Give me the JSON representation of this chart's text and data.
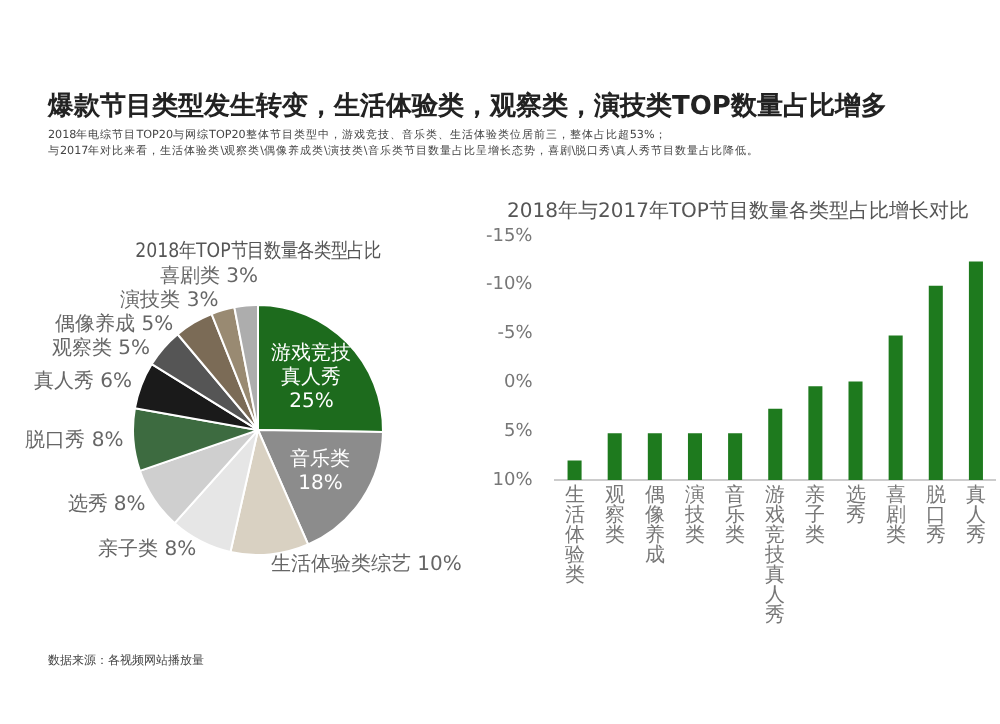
{
  "chart_data": [
    {
      "type": "other",
      "title": "爆款节目类型发生转变，生活体验类，观察类，演技类TOP数量占比增多",
      "subtitle": "2018年电综节目TOP20与网综TOP20整体节目类型中，游戏竞技、音乐类、生活体验类位居前三，整体占比超53%；",
      "annotations": [
        "与2017年对比来看，生活体验类\\观察类\\偶像养成类\\演技类\\音乐类节目数量占比呈增长态势，喜剧\\脱口秀\\真人秀节目数量占比降低。",
        "数据来源：各视频网站播放量"
      ]
    },
    {
      "type": "pie",
      "title": "2018年TOP节目数量各类型占比",
      "categories": [
        "游戏竞技真人秀",
        "音乐类",
        "生活体验类综艺",
        "亲子类",
        "选秀",
        "脱口秀",
        "真人秀",
        "观察类",
        "偶像养成",
        "演技类",
        "喜剧类"
      ],
      "values": [
        25,
        18,
        10,
        8,
        8,
        8,
        6,
        5,
        5,
        3,
        3
      ],
      "value_labels": [
        "25%",
        "18%",
        "10%",
        "8%",
        "8%",
        "8%",
        "6%",
        "5%",
        "5%",
        "3%",
        "3%"
      ],
      "colors": [
        "#1d6b1d",
        "#8c8c8c",
        "#d9d1c2",
        "#e6e6e6",
        "#cfcfcf",
        "#3d6b40",
        "#1a1a1a",
        "#555555",
        "#7b6b56",
        "#998a72",
        "#adadad"
      ]
    },
    {
      "type": "bar",
      "title": "2018年与2017年TOP节目数量各类型占比增长对比",
      "categories": [
        "生活体验类",
        "观察类",
        "偶像养成",
        "演技类",
        "音乐类",
        "游戏竞技真人秀",
        "亲子类",
        "选秀",
        "喜剧类",
        "脱口秀",
        "真人秀"
      ],
      "values": [
        -2,
        -4.8,
        -4.8,
        -4.8,
        -4.8,
        -7.3,
        -9.6,
        -10.1,
        -14.8,
        -19.9,
        -22.4
      ],
      "base": [
        10,
        10,
        10,
        10,
        10,
        10,
        10,
        10,
        10,
        10,
        10
      ],
      "color": "#1e7a1e",
      "ylim": [
        10,
        -15
      ],
      "yticks": [
        {
          "value": -15,
          "label": "-15%"
        },
        {
          "value": -10,
          "label": "-10%"
        },
        {
          "value": -5,
          "label": "-5%"
        },
        {
          "value": 0,
          "label": "0%"
        },
        {
          "value": 5,
          "label": "5%"
        },
        {
          "value": 10,
          "label": "10%"
        }
      ],
      "grid": false,
      "legend": false
    }
  ]
}
